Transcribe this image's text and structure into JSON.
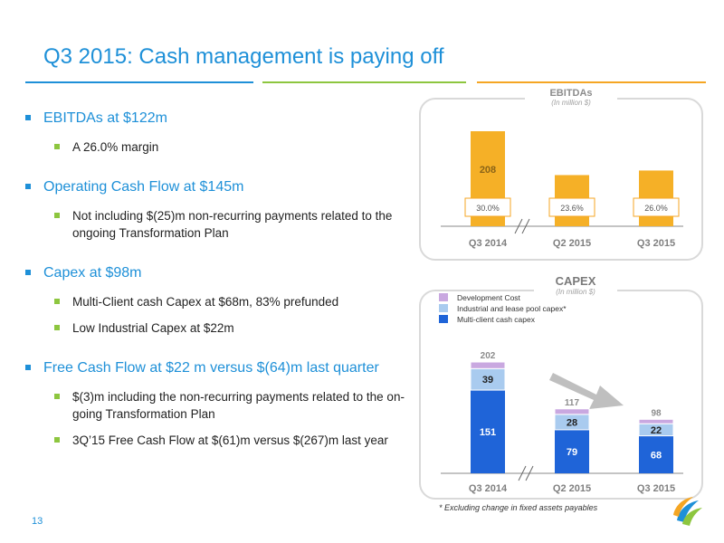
{
  "slide": {
    "title": "Q3 2015: Cash management is paying off",
    "page_number": "13",
    "rule_colors": [
      "#1E90D8",
      "#8DC63F",
      "#F5A623"
    ]
  },
  "bullets": [
    {
      "text": "EBITDAs at $122m",
      "subs": [
        "A 26.0% margin"
      ]
    },
    {
      "text": "Operating Cash Flow at $145m",
      "subs": [
        "Not including $(25)m non-recurring payments related to the ongoing Transformation Plan"
      ]
    },
    {
      "text": "Capex at $98m",
      "subs": [
        "Multi-Client cash Capex at $68m, 83% prefunded",
        "Low Industrial Capex at $22m"
      ]
    },
    {
      "text": "Free Cash Flow at $22 m versus $(64)m last quarter",
      "subs": [
        "$(3)m including the non-recurring payments related to the on-going Transformation Plan",
        "3Q’15 Free Cash Flow at $(61)m versus $(267)m last year"
      ]
    }
  ],
  "chart_data": [
    {
      "type": "bar",
      "title": "EBITDAs",
      "subtitle": "(In million $)",
      "categories": [
        "Q3 2014",
        "Q2 2015",
        "Q3 2015"
      ],
      "values": [
        208,
        112,
        122
      ],
      "margins": [
        "30.0%",
        "23.6%",
        "26.0%"
      ],
      "axis_break": true,
      "color": "#F5B027"
    },
    {
      "type": "bar",
      "stacked": true,
      "title": "CAPEX",
      "subtitle": "(In million $)",
      "footnote": "* Excluding change in fixed assets payables",
      "categories": [
        "Q3 2014",
        "Q2 2015",
        "Q3 2015"
      ],
      "series": [
        {
          "name": "Multi-client cash capex",
          "values": [
            151,
            79,
            68
          ],
          "color": "#1F64D8"
        },
        {
          "name": "Industrial and lease pool capex*",
          "values": [
            39,
            28,
            22
          ],
          "color": "#A9CBEF"
        },
        {
          "name": "Development Cost",
          "values": [
            12,
            10,
            8
          ],
          "color": "#C9A8E0"
        }
      ],
      "totals": [
        202,
        117,
        98
      ],
      "axis_break": true,
      "trend_arrow": "down"
    }
  ]
}
